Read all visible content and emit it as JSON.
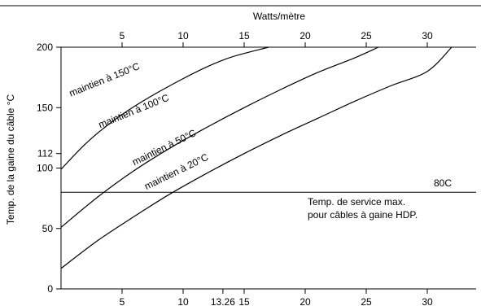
{
  "chart_data": {
    "type": "line",
    "title": "",
    "x_label_top": "Watts/mètre",
    "ylabel": "Temp. de la gaine du câble °C",
    "xlim": [
      0,
      33
    ],
    "ylim": [
      0,
      200
    ],
    "x_ticks_top": [
      {
        "value": 5,
        "label": "5"
      },
      {
        "value": 10,
        "label": "10"
      },
      {
        "value": 15,
        "label": "15"
      },
      {
        "value": 20,
        "label": "20"
      },
      {
        "value": 25,
        "label": "25"
      },
      {
        "value": 30,
        "label": "30"
      }
    ],
    "x_ticks_bottom": [
      {
        "value": 5,
        "label": "5"
      },
      {
        "value": 10,
        "label": "10"
      },
      {
        "value": 13.26,
        "label": "13.26"
      },
      {
        "value": 15,
        "label": "15"
      },
      {
        "value": 20,
        "label": "20"
      },
      {
        "value": 25,
        "label": "25"
      },
      {
        "value": 30,
        "label": "30"
      }
    ],
    "y_ticks": [
      {
        "value": 0,
        "label": "0"
      },
      {
        "value": 50,
        "label": "50"
      },
      {
        "value": 100,
        "label": "100"
      },
      {
        "value": 112,
        "label": "112"
      },
      {
        "value": 150,
        "label": "150"
      },
      {
        "value": 200,
        "label": "200"
      }
    ],
    "grid": false,
    "series": [
      {
        "name": "maintien à 150°C",
        "points": [
          [
            0,
            99
          ],
          [
            2,
            120
          ],
          [
            4,
            137
          ],
          [
            6,
            151
          ],
          [
            8,
            163
          ],
          [
            10,
            174
          ],
          [
            12,
            184
          ],
          [
            14,
            192
          ],
          [
            17,
            200
          ]
        ]
      },
      {
        "name": "maintien à 100°C",
        "points": [
          [
            0,
            51
          ],
          [
            3,
            76
          ],
          [
            6,
            98
          ],
          [
            9,
            117
          ],
          [
            12,
            134
          ],
          [
            15,
            150
          ],
          [
            18,
            165
          ],
          [
            21,
            179
          ],
          [
            24,
            191
          ],
          [
            26,
            200
          ]
        ]
      },
      {
        "name": "maintien à 50°C",
        "points": [
          [
            0,
            17
          ],
          [
            3,
            40
          ],
          [
            6,
            60
          ],
          [
            9,
            79
          ],
          [
            12,
            96
          ],
          [
            15,
            112
          ],
          [
            18,
            127
          ],
          [
            21,
            141
          ],
          [
            24,
            155
          ],
          [
            27,
            168
          ],
          [
            30,
            180
          ],
          [
            32,
            200
          ]
        ]
      }
    ],
    "curve_labels": [
      {
        "text": "maintien à 150°C",
        "x": 0.8,
        "y": 159,
        "angle": -22
      },
      {
        "text": "maintien à 100°C",
        "x": 3.2,
        "y": 133,
        "angle": -22
      },
      {
        "text": "maintien à 50°C",
        "x": 6,
        "y": 102,
        "angle": -26
      },
      {
        "text": "maintien à 20°C",
        "x": 7,
        "y": 82,
        "angle": -26
      }
    ],
    "reference_line": {
      "y": 80,
      "label": "80C",
      "note_line1": "Temp. de service max.",
      "note_line2": "pour câbles à gaine HDP."
    }
  }
}
